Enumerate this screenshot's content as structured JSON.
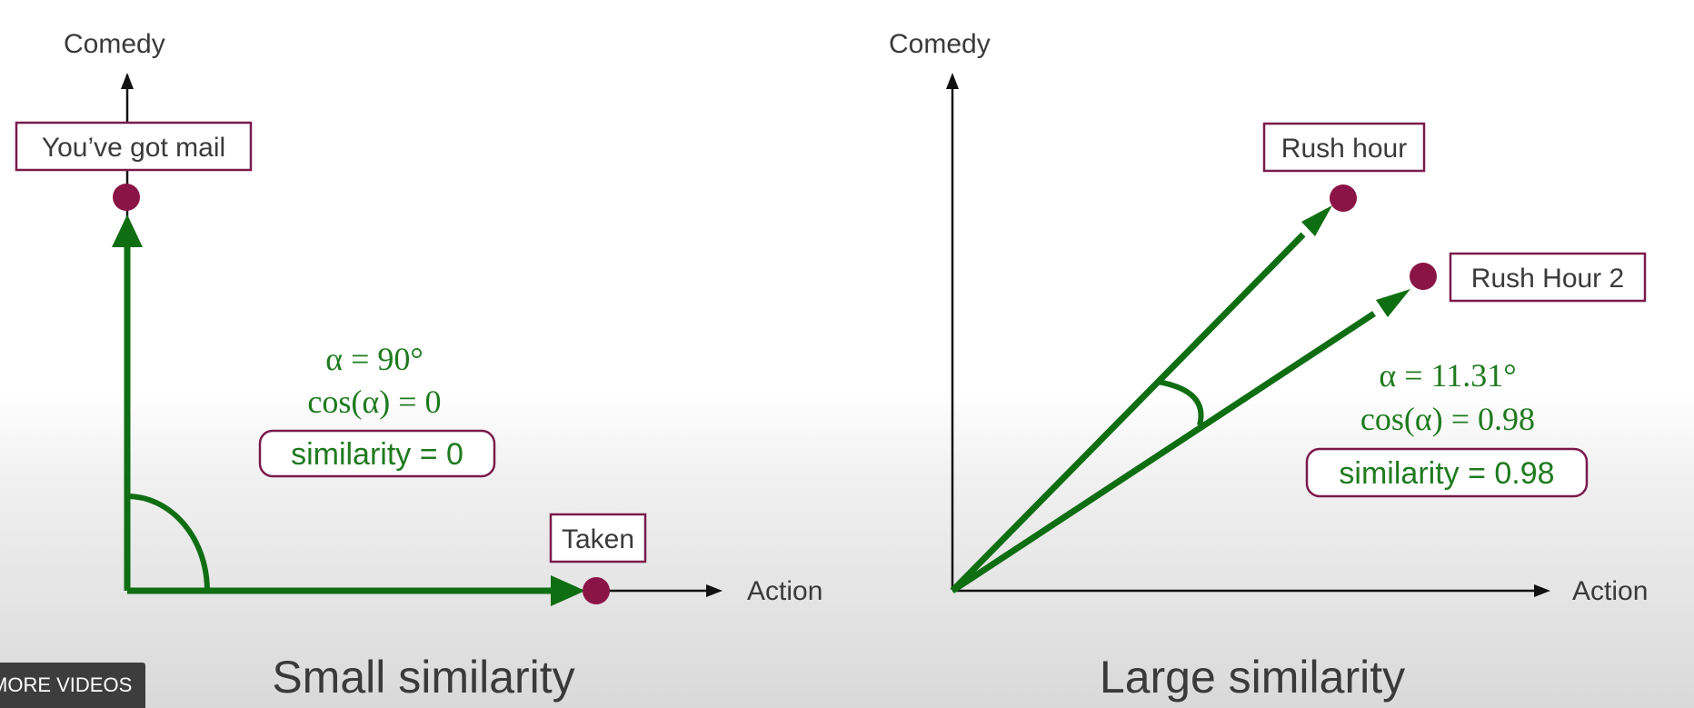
{
  "left_panel": {
    "y_axis_label": "Comedy",
    "x_axis_label": "Action",
    "movie_vertical": "You’ve got mail",
    "movie_horizontal": "Taken",
    "alpha_text": "α = 90°",
    "cos_text": "cos(α) = 0",
    "similarity_text": "similarity = 0",
    "caption": "Small similarity"
  },
  "right_panel": {
    "y_axis_label": "Comedy",
    "x_axis_label": "Action",
    "movie_upper": "Rush hour",
    "movie_lower": "Rush Hour 2",
    "alpha_text": "α = 11.31°",
    "cos_text": "cos(α) = 0.98",
    "similarity_text": "similarity = 0.98",
    "caption": "Large similarity"
  },
  "overlay": {
    "more_videos_label": "MORE VIDEOS"
  },
  "colors": {
    "vector_green": "#0f6e12",
    "math_green": "#1f7a1f",
    "point_maroon": "#8b1446",
    "box_border": "#7a1a4a",
    "axis_black": "#111111"
  }
}
